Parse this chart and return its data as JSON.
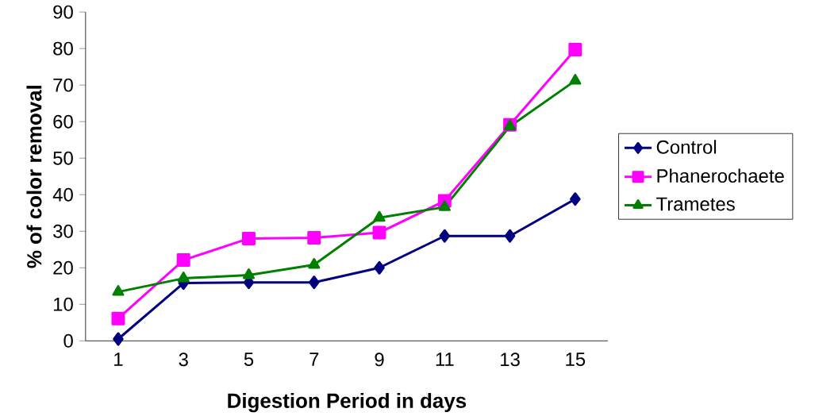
{
  "chart_data": {
    "type": "line",
    "xlabel": "Digestion Period in days",
    "ylabel": "% of color removal",
    "categories": [
      "1",
      "3",
      "5",
      "7",
      "9",
      "11",
      "13",
      "15"
    ],
    "series": [
      {
        "name": "Control",
        "color": "#000080",
        "marker": "diamond",
        "values": [
          0.5,
          15.8,
          16,
          16,
          20,
          28.7,
          28.7,
          38.8
        ]
      },
      {
        "name": "Phanerochaete",
        "color": "#ff00ff",
        "marker": "square",
        "values": [
          6.1,
          22.1,
          28,
          28.2,
          29.6,
          38.3,
          59.1,
          79.7
        ]
      },
      {
        "name": "Trametes",
        "color": "#008000",
        "marker": "triangle",
        "values": [
          13.4,
          17.1,
          18,
          20.8,
          33.7,
          36.6,
          58.7,
          71.2
        ]
      }
    ],
    "ylim": [
      0,
      90
    ],
    "yticks": [
      0,
      10,
      20,
      30,
      40,
      50,
      60,
      70,
      80,
      90
    ],
    "grid": false,
    "legend": "right",
    "line_style": "solid"
  }
}
